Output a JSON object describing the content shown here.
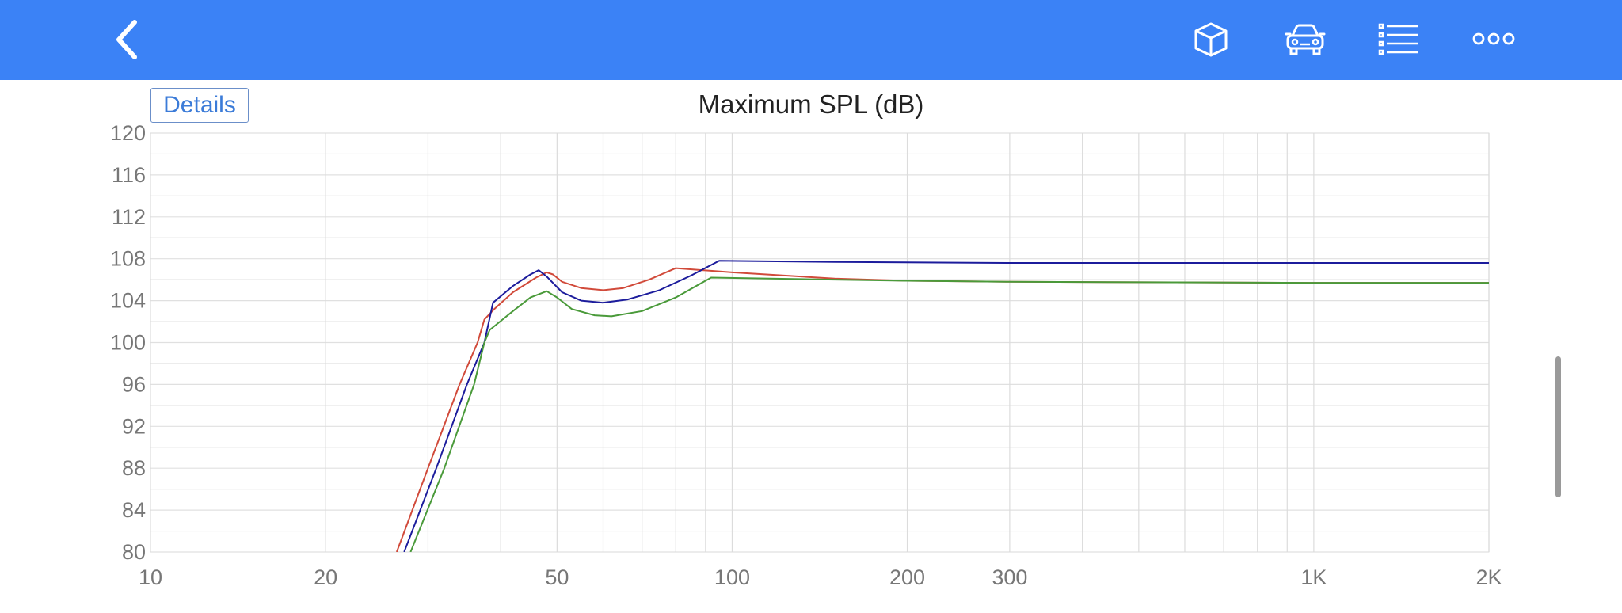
{
  "header": {
    "icons": [
      "chevron-left-icon",
      "cube-icon",
      "car-icon",
      "list-icon",
      "more-icon"
    ],
    "background_color": "#3b82f6"
  },
  "details_button": {
    "label": "Details"
  },
  "chart_data": {
    "type": "line",
    "title": "Maximum SPL (dB)",
    "xlabel": "",
    "ylabel": "",
    "x_scale": "log",
    "xlim": [
      10,
      2000
    ],
    "ylim": [
      80,
      120
    ],
    "x_ticks": [
      {
        "value": 10,
        "label": "10"
      },
      {
        "value": 20,
        "label": "20"
      },
      {
        "value": 50,
        "label": "50"
      },
      {
        "value": 100,
        "label": "100"
      },
      {
        "value": 200,
        "label": "200"
      },
      {
        "value": 300,
        "label": "300"
      },
      {
        "value": 1000,
        "label": "1K"
      },
      {
        "value": 2000,
        "label": "2K"
      }
    ],
    "y_ticks": [
      80,
      84,
      88,
      92,
      96,
      100,
      104,
      108,
      112,
      116,
      120
    ],
    "grid": true,
    "series": [
      {
        "color": "#d14a3a",
        "points": [
          [
            26.5,
            80
          ],
          [
            30,
            88
          ],
          [
            34,
            96
          ],
          [
            36.5,
            100
          ],
          [
            37.5,
            102.2
          ],
          [
            39,
            103.2
          ],
          [
            42,
            104.8
          ],
          [
            46,
            106.2
          ],
          [
            48,
            106.7
          ],
          [
            49.2,
            106.5
          ],
          [
            51,
            105.8
          ],
          [
            55,
            105.2
          ],
          [
            60,
            105.0
          ],
          [
            65,
            105.2
          ],
          [
            72,
            106.0
          ],
          [
            80,
            107.1
          ],
          [
            100,
            106.7
          ],
          [
            150,
            106.1
          ],
          [
            200,
            105.9
          ],
          [
            300,
            105.8
          ],
          [
            1000,
            105.7
          ],
          [
            2000,
            105.7
          ]
        ]
      },
      {
        "color": "#1c1c9c",
        "points": [
          [
            27.3,
            80
          ],
          [
            31,
            88
          ],
          [
            35,
            96
          ],
          [
            37.5,
            100
          ],
          [
            38.8,
            103.8
          ],
          [
            42,
            105.4
          ],
          [
            45,
            106.5
          ],
          [
            46.5,
            106.9
          ],
          [
            48,
            106.3
          ],
          [
            51,
            104.8
          ],
          [
            55,
            104.0
          ],
          [
            60,
            103.8
          ],
          [
            66,
            104.1
          ],
          [
            75,
            105.0
          ],
          [
            85,
            106.4
          ],
          [
            95,
            107.8
          ],
          [
            150,
            107.7
          ],
          [
            300,
            107.6
          ],
          [
            1000,
            107.6
          ],
          [
            2000,
            107.6
          ]
        ]
      },
      {
        "color": "#4a9a3a",
        "points": [
          [
            28,
            80
          ],
          [
            32,
            88
          ],
          [
            36,
            96
          ],
          [
            37.5,
            100
          ],
          [
            38.3,
            101.2
          ],
          [
            42,
            103.0
          ],
          [
            45,
            104.3
          ],
          [
            48,
            104.9
          ],
          [
            50,
            104.3
          ],
          [
            53,
            103.2
          ],
          [
            58,
            102.6
          ],
          [
            62,
            102.5
          ],
          [
            70,
            103.0
          ],
          [
            80,
            104.3
          ],
          [
            92,
            106.2
          ],
          [
            150,
            106.0
          ],
          [
            200,
            105.9
          ],
          [
            300,
            105.8
          ],
          [
            1000,
            105.7
          ],
          [
            2000,
            105.7
          ]
        ]
      }
    ]
  }
}
